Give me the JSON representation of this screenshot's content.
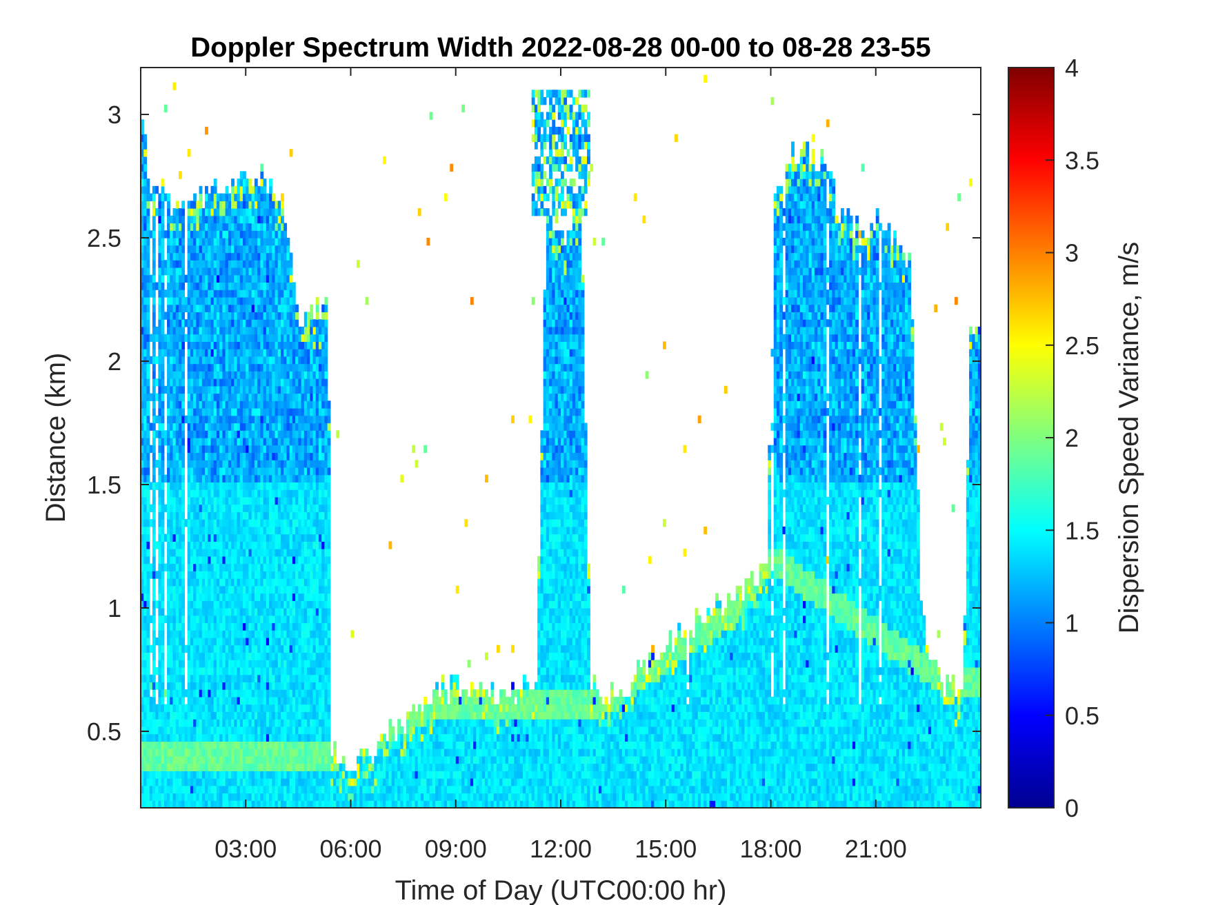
{
  "chart_data": {
    "type": "heatmap",
    "title": "Doppler Spectrum Width 2022-08-28 00-00 to 08-28 23-55",
    "xlabel": "Time of Day (UTC00:00 hr)",
    "ylabel": "Distance (km)",
    "colorbar_label": "Dispersion Speed Variance, m/s",
    "colormap": "jet",
    "xlim": [
      0,
      24
    ],
    "ylim": [
      0.19,
      3.19
    ],
    "clim": [
      0,
      4
    ],
    "x_ticks": [
      3,
      6,
      9,
      12,
      15,
      18,
      21
    ],
    "x_tick_labels": [
      "03:00",
      "06:00",
      "09:00",
      "12:00",
      "15:00",
      "18:00",
      "21:00"
    ],
    "y_ticks": [
      0.5,
      1,
      1.5,
      2,
      2.5,
      3
    ],
    "y_tick_labels": [
      "0.5",
      "1",
      "1.5",
      "2",
      "2.5",
      "3"
    ],
    "colorbar_ticks": [
      0,
      0.5,
      1,
      1.5,
      2,
      2.5,
      3,
      3.5,
      4
    ],
    "colorbar_tick_labels": [
      "0",
      "0.5",
      "1",
      "1.5",
      "2",
      "2.5",
      "3",
      "3.5",
      "4"
    ],
    "grid": false,
    "typical_value": 1.4,
    "echo_top_km": [
      {
        "x": 0.0,
        "y": 3.0
      },
      {
        "x": 0.25,
        "y": 2.75
      },
      {
        "x": 0.75,
        "y": 2.65
      },
      {
        "x": 1.25,
        "y": 2.65
      },
      {
        "x": 2.0,
        "y": 2.7
      },
      {
        "x": 2.75,
        "y": 2.75
      },
      {
        "x": 3.25,
        "y": 2.78
      },
      {
        "x": 3.9,
        "y": 2.7
      },
      {
        "x": 4.3,
        "y": 2.4
      },
      {
        "x": 4.5,
        "y": 2.2
      },
      {
        "x": 5.0,
        "y": 2.2
      },
      {
        "x": 5.35,
        "y": 2.25
      },
      {
        "x": 5.45,
        "y": 0.45
      },
      {
        "x": 6.0,
        "y": 0.38
      },
      {
        "x": 6.5,
        "y": 0.4
      },
      {
        "x": 7.0,
        "y": 0.5
      },
      {
        "x": 7.5,
        "y": 0.52
      },
      {
        "x": 8.2,
        "y": 0.6
      },
      {
        "x": 8.5,
        "y": 0.68
      },
      {
        "x": 9.5,
        "y": 0.66
      },
      {
        "x": 10.5,
        "y": 0.65
      },
      {
        "x": 11.0,
        "y": 0.7
      },
      {
        "x": 11.3,
        "y": 0.75
      },
      {
        "x": 11.6,
        "y": 2.6
      },
      {
        "x": 12.0,
        "y": 2.5
      },
      {
        "x": 12.6,
        "y": 2.6
      },
      {
        "x": 12.85,
        "y": 0.7
      },
      {
        "x": 13.5,
        "y": 0.65
      },
      {
        "x": 14.0,
        "y": 0.68
      },
      {
        "x": 14.5,
        "y": 0.8
      },
      {
        "x": 15.0,
        "y": 0.85
      },
      {
        "x": 15.5,
        "y": 0.9
      },
      {
        "x": 16.0,
        "y": 0.95
      },
      {
        "x": 16.5,
        "y": 1.0
      },
      {
        "x": 17.0,
        "y": 1.05
      },
      {
        "x": 17.5,
        "y": 1.1
      },
      {
        "x": 17.9,
        "y": 1.2
      },
      {
        "x": 18.1,
        "y": 2.6
      },
      {
        "x": 18.5,
        "y": 2.85
      },
      {
        "x": 19.0,
        "y": 2.85
      },
      {
        "x": 19.5,
        "y": 2.8
      },
      {
        "x": 20.0,
        "y": 2.6
      },
      {
        "x": 20.5,
        "y": 2.55
      },
      {
        "x": 21.0,
        "y": 2.55
      },
      {
        "x": 21.5,
        "y": 2.5
      },
      {
        "x": 22.0,
        "y": 2.4
      },
      {
        "x": 22.3,
        "y": 1.0
      },
      {
        "x": 22.6,
        "y": 0.8
      },
      {
        "x": 23.0,
        "y": 0.7
      },
      {
        "x": 23.5,
        "y": 0.68
      },
      {
        "x": 23.7,
        "y": 2.1
      },
      {
        "x": 24.0,
        "y": 2.1
      }
    ],
    "high_variance_layer_km": [
      {
        "x": 5.5,
        "y": 0.4
      },
      {
        "x": 8.5,
        "y": 0.62
      },
      {
        "x": 10.0,
        "y": 0.6
      },
      {
        "x": 13.0,
        "y": 0.6
      },
      {
        "x": 15.0,
        "y": 0.8
      },
      {
        "x": 17.0,
        "y": 1.0
      },
      {
        "x": 18.0,
        "y": 1.2
      },
      {
        "x": 23.0,
        "y": 0.7
      }
    ],
    "high_variance_value": 1.9,
    "cloud_plumes": [
      {
        "x_from": 11.2,
        "x_to": 12.8,
        "y_from": 2.6,
        "y_to": 3.1
      }
    ]
  }
}
